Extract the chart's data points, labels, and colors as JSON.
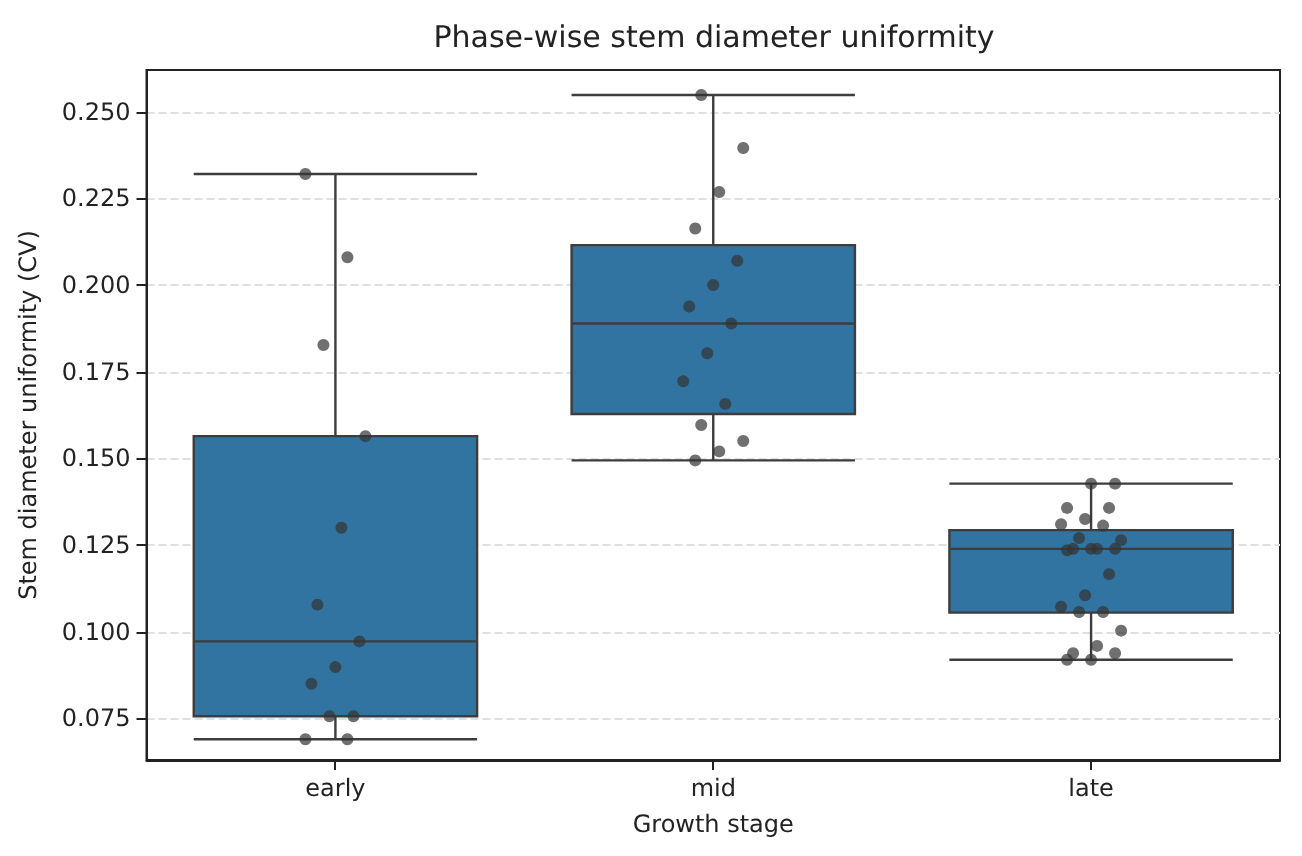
{
  "chart_data": {
    "type": "box",
    "title": "Phase-wise stem diameter uniformity",
    "xlabel": "Growth stage",
    "ylabel": "Stem diameter uniformity (CV)",
    "categories": [
      "early",
      "mid",
      "late"
    ],
    "series": [
      {
        "color": "#3274a1",
        "boxes": [
          {
            "low": 0.069,
            "q1": 0.0756,
            "median": 0.0972,
            "q3": 0.1564,
            "high": 0.232
          },
          {
            "low": 0.1494,
            "q1": 0.1628,
            "median": 0.1889,
            "q3": 0.2115,
            "high": 0.2548
          },
          {
            "low": 0.0919,
            "q1": 0.1055,
            "median": 0.1239,
            "q3": 0.1293,
            "high": 0.1427
          }
        ]
      },
      {
        "type": "scatter",
        "color": "#333333",
        "marker": "circle",
        "x": [
          "early",
          "early",
          "early",
          "early",
          "early",
          "early",
          "early",
          "early",
          "early",
          "early",
          "early",
          "early",
          "early",
          "mid",
          "mid",
          "mid",
          "mid",
          "mid",
          "mid",
          "mid",
          "mid",
          "mid",
          "mid",
          "mid",
          "mid",
          "mid",
          "mid",
          "mid",
          "late",
          "late",
          "late",
          "late",
          "late",
          "late",
          "late",
          "late",
          "late",
          "late",
          "late",
          "late",
          "late",
          "late",
          "late",
          "late",
          "late",
          "late",
          "late",
          "late",
          "late",
          "late",
          "late",
          "late",
          "late"
        ],
        "values": [
          0.232,
          0.208,
          0.1827,
          0.1564,
          0.13,
          0.1078,
          0.0972,
          0.0898,
          0.085,
          0.0756,
          0.0756,
          0.069,
          0.069,
          0.2548,
          0.2395,
          0.2268,
          0.2163,
          0.207,
          0.2,
          0.1938,
          0.1889,
          0.1803,
          0.1722,
          0.1657,
          0.1596,
          0.155,
          0.152,
          0.1494,
          0.1427,
          0.1427,
          0.1357,
          0.1357,
          0.1325,
          0.131,
          0.1306,
          0.127,
          0.1264,
          0.1239,
          0.1239,
          0.1239,
          0.1239,
          0.1235,
          0.1166,
          0.1105,
          0.1072,
          0.1057,
          0.1057,
          0.1003,
          0.0959,
          0.0938,
          0.0938,
          0.0919,
          0.0919
        ]
      }
    ],
    "ylim": [
      0.063,
      0.262
    ],
    "yticks": [
      {
        "value": 0.075,
        "label": "0.075"
      },
      {
        "value": 0.1,
        "label": "0.100"
      },
      {
        "value": 0.125,
        "label": "0.125"
      },
      {
        "value": 0.15,
        "label": "0.150"
      },
      {
        "value": 0.175,
        "label": "0.175"
      },
      {
        "value": 0.2,
        "label": "0.200"
      },
      {
        "value": 0.225,
        "label": "0.225"
      },
      {
        "value": 0.25,
        "label": "0.250"
      }
    ],
    "grid": "y"
  }
}
